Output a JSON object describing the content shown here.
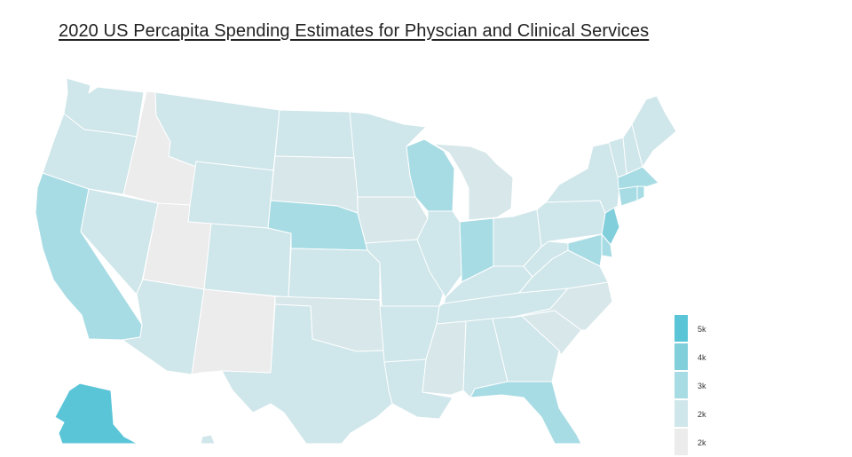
{
  "title": "2020 US Percapita Spending Estimates for Physcian and Clinical Services",
  "legend": {
    "items": [
      {
        "label": "5k",
        "color": "#5bc5d8"
      },
      {
        "label": "4k",
        "color": "#82cfdc"
      },
      {
        "label": "3k",
        "color": "#a8dce4"
      },
      {
        "label": "2k",
        "color": "#cfe6ea"
      },
      {
        "label": "2k",
        "color": "#ececec"
      }
    ]
  },
  "map": {
    "colors": {
      "c5": "#5bc5d8",
      "c4": "#82cfdc",
      "c3": "#a8dce4",
      "c2": "#cfe6ea",
      "c2b": "#d7e7ea",
      "c1": "#ececec",
      "border": "#ffffff"
    },
    "states": [
      {
        "abbr": "WA",
        "level": "c2"
      },
      {
        "abbr": "OR",
        "level": "c2"
      },
      {
        "abbr": "CA",
        "level": "c3"
      },
      {
        "abbr": "NV",
        "level": "c2"
      },
      {
        "abbr": "ID",
        "level": "c1"
      },
      {
        "abbr": "MT",
        "level": "c2"
      },
      {
        "abbr": "WY",
        "level": "c2"
      },
      {
        "abbr": "UT",
        "level": "c1"
      },
      {
        "abbr": "AZ",
        "level": "c2"
      },
      {
        "abbr": "CO",
        "level": "c2"
      },
      {
        "abbr": "NM",
        "level": "c1"
      },
      {
        "abbr": "ND",
        "level": "c2"
      },
      {
        "abbr": "SD",
        "level": "c2b"
      },
      {
        "abbr": "NE",
        "level": "c3"
      },
      {
        "abbr": "KS",
        "level": "c2"
      },
      {
        "abbr": "OK",
        "level": "c2b"
      },
      {
        "abbr": "TX",
        "level": "c2"
      },
      {
        "abbr": "MN",
        "level": "c2"
      },
      {
        "abbr": "IA",
        "level": "c2b"
      },
      {
        "abbr": "MO",
        "level": "c2"
      },
      {
        "abbr": "AR",
        "level": "c2"
      },
      {
        "abbr": "LA",
        "level": "c2"
      },
      {
        "abbr": "WI",
        "level": "c3"
      },
      {
        "abbr": "IL",
        "level": "c2"
      },
      {
        "abbr": "MI",
        "level": "c2b"
      },
      {
        "abbr": "IN",
        "level": "c3"
      },
      {
        "abbr": "OH",
        "level": "c2"
      },
      {
        "abbr": "KY",
        "level": "c2"
      },
      {
        "abbr": "TN",
        "level": "c2"
      },
      {
        "abbr": "MS",
        "level": "c2b"
      },
      {
        "abbr": "AL",
        "level": "c2"
      },
      {
        "abbr": "GA",
        "level": "c2"
      },
      {
        "abbr": "FL",
        "level": "c3"
      },
      {
        "abbr": "SC",
        "level": "c2b"
      },
      {
        "abbr": "NC",
        "level": "c2b"
      },
      {
        "abbr": "VA",
        "level": "c2"
      },
      {
        "abbr": "WV",
        "level": "c2"
      },
      {
        "abbr": "PA",
        "level": "c2"
      },
      {
        "abbr": "NY",
        "level": "c2"
      },
      {
        "abbr": "VT",
        "level": "c2"
      },
      {
        "abbr": "NH",
        "level": "c2"
      },
      {
        "abbr": "ME",
        "level": "c2"
      },
      {
        "abbr": "MA",
        "level": "c3"
      },
      {
        "abbr": "CT",
        "level": "c3"
      },
      {
        "abbr": "RI",
        "level": "c3"
      },
      {
        "abbr": "NJ",
        "level": "c4"
      },
      {
        "abbr": "DE",
        "level": "c3"
      },
      {
        "abbr": "MD",
        "level": "c3"
      },
      {
        "abbr": "AK",
        "level": "c5"
      },
      {
        "abbr": "HI",
        "level": "c2"
      }
    ]
  }
}
